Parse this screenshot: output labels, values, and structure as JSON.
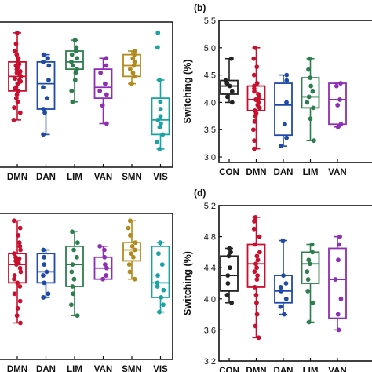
{
  "chart_data": [
    {
      "panel": "",
      "type": "box",
      "ylabel": "",
      "categories": [
        "DMN",
        "DAN",
        "LIM",
        "VAN",
        "SMN",
        "VIS"
      ],
      "colors": [
        "#c8102e",
        "#1f4aa8",
        "#2e7d4f",
        "#8e2eb5",
        "#b08a1e",
        "#1aa3a3"
      ],
      "boxes": [
        {
          "q1": 4.05,
          "median": 4.25,
          "q3": 4.45,
          "whisker_low": 3.65,
          "whisker_high": 4.85,
          "points": [
            3.65,
            3.75,
            3.82,
            3.9,
            3.95,
            4.0,
            4.05,
            4.08,
            4.1,
            4.15,
            4.18,
            4.2,
            4.22,
            4.25,
            4.28,
            4.3,
            4.32,
            4.35,
            4.38,
            4.4,
            4.42,
            4.45,
            4.5,
            4.55,
            4.6,
            4.7,
            4.85
          ]
        },
        {
          "q1": 3.8,
          "median": 4.15,
          "q3": 4.45,
          "whisker_low": 3.45,
          "whisker_high": 4.55,
          "points": [
            3.45,
            3.75,
            3.8,
            3.95,
            4.1,
            4.2,
            4.4,
            4.45,
            4.5,
            4.55
          ]
        },
        {
          "q1": 4.35,
          "median": 4.45,
          "q3": 4.6,
          "whisker_low": 3.9,
          "whisker_high": 4.75,
          "points": [
            3.9,
            4.05,
            4.2,
            4.3,
            4.35,
            4.4,
            4.45,
            4.5,
            4.55,
            4.6,
            4.65,
            4.75
          ]
        },
        {
          "q1": 3.95,
          "median": 4.1,
          "q3": 4.35,
          "whisker_low": 3.6,
          "whisker_high": 4.5,
          "points": [
            3.6,
            3.85,
            4.0,
            4.05,
            4.15,
            4.3,
            4.4,
            4.5
          ]
        },
        {
          "q1": 4.25,
          "median": 4.4,
          "q3": 4.55,
          "whisker_low": 4.15,
          "whisker_high": 4.6,
          "points": [
            4.15,
            4.25,
            4.3,
            4.35,
            4.4,
            4.45,
            4.5,
            4.55,
            4.6
          ]
        },
        {
          "q1": 3.45,
          "median": 3.65,
          "q3": 3.95,
          "whisker_low": 3.25,
          "whisker_high": 4.2,
          "points": [
            3.25,
            3.35,
            3.45,
            3.55,
            3.6,
            3.65,
            3.7,
            3.8,
            3.9,
            4.2,
            4.65,
            4.85
          ]
        }
      ],
      "ylim": [
        3.0,
        5.0
      ],
      "yticks": []
    },
    {
      "panel": "(b)",
      "type": "box",
      "ylabel": "Switching (%)",
      "categories": [
        "CON",
        "DMN",
        "DAN",
        "LIM",
        "VAN"
      ],
      "colors": [
        "#222222",
        "#c8102e",
        "#1f4aa8",
        "#2e7d4f",
        "#8e2eb5"
      ],
      "boxes": [
        {
          "q1": 4.15,
          "median": 4.3,
          "q3": 4.4,
          "whisker_low": 4.0,
          "whisker_high": 4.8,
          "points": [
            4.0,
            4.1,
            4.2,
            4.3,
            4.35,
            4.4,
            4.8
          ]
        },
        {
          "q1": 3.85,
          "median": 4.05,
          "q3": 4.3,
          "whisker_low": 3.15,
          "whisker_high": 5.0,
          "points": [
            3.15,
            3.3,
            3.5,
            3.65,
            3.75,
            3.8,
            3.85,
            3.9,
            3.95,
            4.0,
            4.05,
            4.1,
            4.15,
            4.2,
            4.25,
            4.3,
            4.35,
            4.5,
            4.65,
            4.8,
            5.0
          ]
        },
        {
          "q1": 3.4,
          "median": 3.95,
          "q3": 4.35,
          "whisker_low": 3.2,
          "whisker_high": 4.5,
          "points": [
            3.2,
            3.35,
            3.6,
            4.0,
            4.4,
            4.5
          ]
        },
        {
          "q1": 3.9,
          "median": 4.1,
          "q3": 4.45,
          "whisker_low": 3.3,
          "whisker_high": 4.8,
          "points": [
            3.3,
            3.7,
            3.9,
            4.0,
            4.1,
            4.2,
            4.3,
            4.45,
            4.6,
            4.8
          ]
        },
        {
          "q1": 3.6,
          "median": 4.05,
          "q3": 4.35,
          "whisker_low": 3.55,
          "whisker_high": 4.35,
          "points": [
            3.55,
            3.6,
            3.95,
            4.05,
            4.3,
            4.35
          ]
        }
      ],
      "ylim": [
        2.9,
        5.5
      ],
      "yticks": [
        "3.0",
        "3.5",
        "4.0",
        "4.5",
        "5.0",
        "5.5"
      ]
    },
    {
      "panel": "",
      "type": "box",
      "ylabel": "",
      "categories": [
        "DMN",
        "DAN",
        "LIM",
        "VAN",
        "SMN",
        "VIS"
      ],
      "colors": [
        "#c8102e",
        "#1f4aa8",
        "#2e7d4f",
        "#8e2eb5",
        "#b08a1e",
        "#1aa3a3"
      ],
      "boxes": [
        {
          "q1": 4.05,
          "median": 4.3,
          "q3": 4.45,
          "whisker_low": 3.5,
          "whisker_high": 4.9,
          "points": [
            3.5,
            3.6,
            3.7,
            3.8,
            3.9,
            4.0,
            4.05,
            4.1,
            4.15,
            4.2,
            4.25,
            4.3,
            4.32,
            4.35,
            4.38,
            4.4,
            4.45,
            4.5,
            4.55,
            4.6,
            4.7,
            4.8,
            4.9
          ]
        },
        {
          "q1": 4.05,
          "median": 4.2,
          "q3": 4.45,
          "whisker_low": 3.85,
          "whisker_high": 4.5,
          "points": [
            3.85,
            3.9,
            4.05,
            4.15,
            4.2,
            4.3,
            4.4,
            4.5
          ]
        },
        {
          "q1": 4.0,
          "median": 4.3,
          "q3": 4.55,
          "whisker_low": 3.6,
          "whisker_high": 4.75,
          "points": [
            3.6,
            3.75,
            3.9,
            4.0,
            4.1,
            4.2,
            4.3,
            4.4,
            4.5,
            4.6,
            4.75
          ]
        },
        {
          "q1": 4.1,
          "median": 4.25,
          "q3": 4.4,
          "whisker_low": 4.1,
          "whisker_high": 4.55,
          "points": [
            4.1,
            4.15,
            4.25,
            4.3,
            4.4,
            4.5,
            4.55
          ]
        },
        {
          "q1": 4.35,
          "median": 4.5,
          "q3": 4.6,
          "whisker_low": 4.1,
          "whisker_high": 4.9,
          "points": [
            4.1,
            4.2,
            4.3,
            4.4,
            4.45,
            4.5,
            4.55,
            4.6,
            4.7,
            4.8,
            4.9
          ]
        },
        {
          "q1": 3.85,
          "median": 4.05,
          "q3": 4.55,
          "whisker_low": 3.65,
          "whisker_high": 4.6,
          "points": [
            3.65,
            3.75,
            3.85,
            3.95,
            4.0,
            4.05,
            4.15,
            4.3,
            4.45,
            4.6
          ]
        }
      ],
      "ylim": [
        3.0,
        5.0
      ],
      "yticks": []
    },
    {
      "panel": "(d)",
      "type": "box",
      "ylabel": "Switching (%)",
      "categories": [
        "CON",
        "DMN",
        "DAN",
        "LIM",
        "VAN"
      ],
      "colors": [
        "#222222",
        "#c8102e",
        "#1f4aa8",
        "#2e7d4f",
        "#8e2eb5"
      ],
      "boxes": [
        {
          "q1": 4.1,
          "median": 4.3,
          "q3": 4.55,
          "whisker_low": 3.95,
          "whisker_high": 4.65,
          "points": [
            3.95,
            4.05,
            4.2,
            4.3,
            4.4,
            4.55,
            4.6,
            4.65
          ]
        },
        {
          "q1": 4.15,
          "median": 4.45,
          "q3": 4.7,
          "whisker_low": 3.5,
          "whisker_high": 5.05,
          "points": [
            3.5,
            3.65,
            3.8,
            3.95,
            4.05,
            4.15,
            4.25,
            4.3,
            4.35,
            4.4,
            4.45,
            4.5,
            4.55,
            4.6,
            4.7,
            4.8,
            4.9,
            5.0,
            5.05
          ]
        },
        {
          "q1": 3.95,
          "median": 4.1,
          "q3": 4.3,
          "whisker_low": 3.8,
          "whisker_high": 4.75,
          "points": [
            3.8,
            3.9,
            4.0,
            4.1,
            4.15,
            4.2,
            4.3,
            4.75
          ]
        },
        {
          "q1": 4.2,
          "median": 4.45,
          "q3": 4.6,
          "whisker_low": 3.7,
          "whisker_high": 4.7,
          "points": [
            3.7,
            3.95,
            4.1,
            4.25,
            4.35,
            4.45,
            4.5,
            4.6,
            4.7
          ]
        },
        {
          "q1": 3.75,
          "median": 4.25,
          "q3": 4.65,
          "whisker_low": 3.6,
          "whisker_high": 4.8,
          "points": [
            3.6,
            3.8,
            4.0,
            4.25,
            4.5,
            4.7,
            4.8
          ]
        }
      ],
      "ylim": [
        3.2,
        5.2
      ],
      "yticks": [
        "3.2",
        "3.6",
        "4.0",
        "4.4",
        "4.8",
        "5.2"
      ]
    }
  ]
}
